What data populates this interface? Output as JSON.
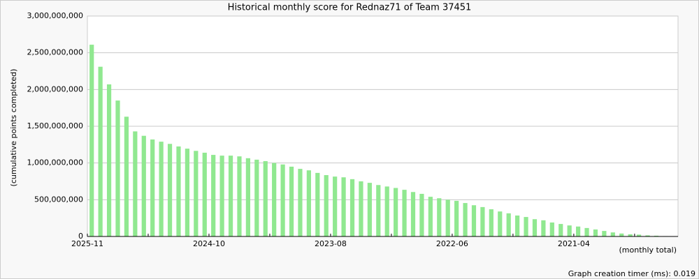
{
  "chart_data": {
    "type": "bar",
    "title": "Historical monthly score for Rednaz71 of Team 37451",
    "y_label": "(cumulative points completed)",
    "x_label": "(monthly total)",
    "footer": "Graph creation timer (ms): 0.019",
    "color": "#90e890",
    "grid": true,
    "categories": [
      "2025-11",
      null,
      null,
      null,
      null,
      null,
      null,
      null,
      null,
      null,
      null,
      null,
      null,
      null,
      "2024-10",
      null,
      null,
      null,
      null,
      null,
      null,
      null,
      null,
      null,
      null,
      null,
      null,
      null,
      "2023-08",
      null,
      null,
      null,
      null,
      null,
      null,
      null,
      null,
      null,
      null,
      null,
      null,
      null,
      "2022-06",
      null,
      null,
      null,
      null,
      null,
      null,
      null,
      null,
      null,
      null,
      null,
      null,
      null,
      "2021-04",
      null,
      null,
      null,
      null,
      null,
      null,
      null,
      null,
      null,
      null,
      null
    ],
    "values": [
      2610000000,
      2310000000,
      2070000000,
      1850000000,
      1630000000,
      1430000000,
      1370000000,
      1320000000,
      1290000000,
      1260000000,
      1225000000,
      1195000000,
      1165000000,
      1140000000,
      1110000000,
      1100000000,
      1100000000,
      1090000000,
      1065000000,
      1045000000,
      1025000000,
      1000000000,
      980000000,
      950000000,
      920000000,
      900000000,
      865000000,
      835000000,
      815000000,
      805000000,
      780000000,
      750000000,
      730000000,
      700000000,
      680000000,
      660000000,
      635000000,
      605000000,
      580000000,
      540000000,
      520000000,
      500000000,
      485000000,
      455000000,
      425000000,
      400000000,
      370000000,
      340000000,
      315000000,
      285000000,
      265000000,
      235000000,
      220000000,
      190000000,
      170000000,
      150000000,
      135000000,
      115000000,
      95000000,
      75000000,
      55000000,
      40000000,
      30000000,
      25000000,
      15000000,
      10000000,
      5000000,
      2000000
    ],
    "ylim": [
      0,
      3000000000
    ],
    "yticks": [
      {
        "value": 0,
        "label": "0"
      },
      {
        "value": 500000000,
        "label": "500,000,000"
      },
      {
        "value": 1000000000,
        "label": "1,000,000,000"
      },
      {
        "value": 1500000000,
        "label": "1,500,000,000"
      },
      {
        "value": 2000000000,
        "label": "2,000,000,000"
      },
      {
        "value": 2500000000,
        "label": "2,500,000,000"
      },
      {
        "value": 3000000000,
        "label": "3,000,000,000"
      }
    ]
  }
}
